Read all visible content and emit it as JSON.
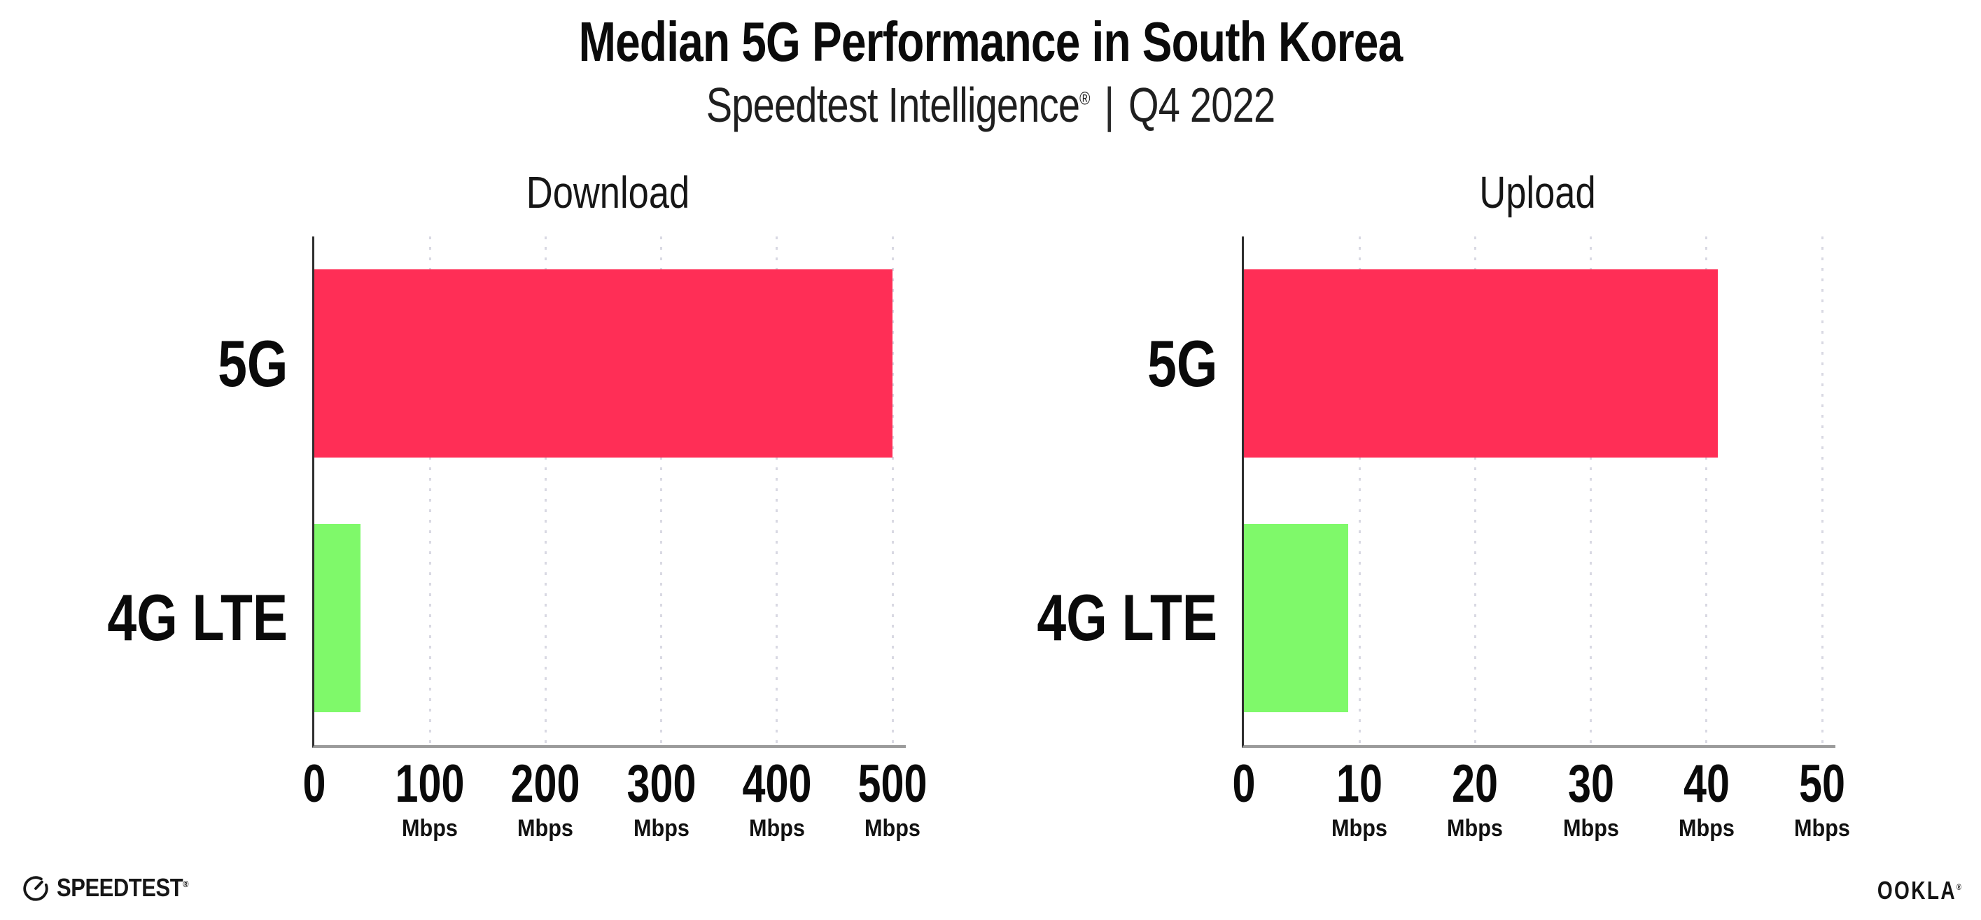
{
  "header": {
    "title": "Median 5G Performance in South Korea",
    "subtitle_brand": "Speedtest Intelligence",
    "subtitle_reg": "®",
    "subtitle_sep": "|",
    "subtitle_period": "Q4 2022"
  },
  "chart_data": [
    {
      "type": "bar",
      "orientation": "horizontal",
      "title": "Download",
      "categories": [
        "5G",
        "4G LTE"
      ],
      "values": [
        500,
        40
      ],
      "unit": "Mbps",
      "xlim": [
        0,
        500
      ],
      "xticks": [
        0,
        100,
        200,
        300,
        400,
        500
      ],
      "tick_unit_label": "Mbps",
      "bar_colors": [
        "#FF2E56",
        "#7FF96A"
      ],
      "grid": "dotted-vertical",
      "legend": "none"
    },
    {
      "type": "bar",
      "orientation": "horizontal",
      "title": "Upload",
      "categories": [
        "5G",
        "4G LTE"
      ],
      "values": [
        41,
        9
      ],
      "unit": "Mbps",
      "xlim": [
        0,
        50
      ],
      "xticks": [
        0,
        10,
        20,
        30,
        40,
        50
      ],
      "tick_unit_label": "Mbps",
      "bar_colors": [
        "#FF2E56",
        "#7FF96A"
      ],
      "grid": "dotted-vertical",
      "legend": "none"
    }
  ],
  "footer": {
    "speedtest_label": "SPEEDTEST",
    "speedtest_reg": "®",
    "ookla_label": "OOKLA",
    "ookla_reg": "®"
  },
  "colors": {
    "bar_5g": "#FF2E56",
    "bar_4g_lte": "#7FF96A",
    "gridline": "#D9D9E3",
    "y_axis": "#2E2E2E",
    "x_axis": "#9B9B9B",
    "text": "#0D0D0D",
    "background": "#FFFFFF"
  }
}
